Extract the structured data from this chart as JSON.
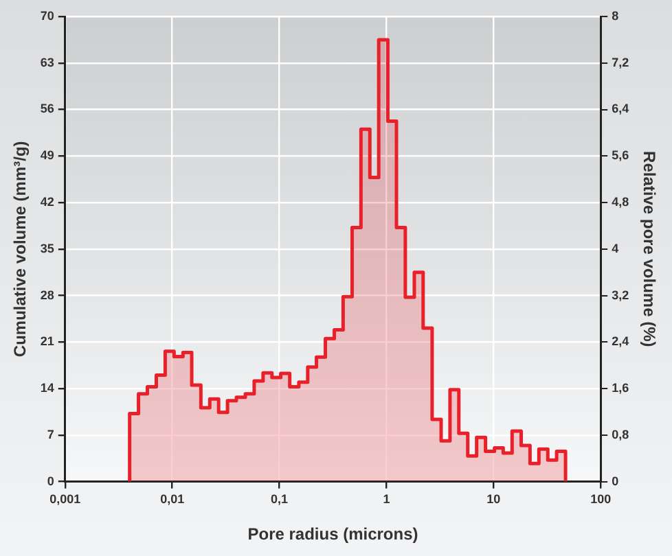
{
  "chart_data": {
    "type": "histogram",
    "xlabel": "Pore radius (microns)",
    "ylabel": "Cumulative volume (mm³/g)",
    "y2label": "Relative pore volume (%)",
    "log": "x",
    "grid": true,
    "legend": false,
    "xlim": [
      0.001,
      100
    ],
    "xticks": [
      {
        "value": 0.001,
        "label": "0,001"
      },
      {
        "value": 0.01,
        "label": "0,01"
      },
      {
        "value": 0.1,
        "label": "0,1"
      },
      1,
      10,
      100
    ],
    "ylim": [
      0,
      70
    ],
    "yticks": [
      0,
      7,
      14,
      21,
      28,
      35,
      42,
      49,
      56,
      63,
      70
    ],
    "y2lim": [
      0,
      8
    ],
    "y2ticks": [
      0,
      {
        "value": 0.8,
        "label": "0,8"
      },
      {
        "value": 1.6,
        "label": "1,6"
      },
      {
        "value": 2.4,
        "label": "2,4"
      },
      {
        "value": 3.2,
        "label": "3,2"
      },
      4,
      {
        "value": 4.8,
        "label": "4,8"
      },
      {
        "value": 5.6,
        "label": "5,6"
      },
      {
        "value": 6.4,
        "label": "6,4"
      },
      {
        "value": 7.2,
        "label": "7,2"
      },
      8
    ],
    "bins": [
      0.004,
      0.00484,
      0.00586,
      0.0071,
      0.00859,
      0.0104,
      0.0126,
      0.0152,
      0.0185,
      0.0224,
      0.0271,
      0.0328,
      0.0397,
      0.0481,
      0.0582,
      0.0705,
      0.0853,
      0.103,
      0.125,
      0.152,
      0.184,
      0.222,
      0.269,
      0.326,
      0.394,
      0.478,
      0.578,
      0.7,
      0.847,
      1.03,
      1.24,
      1.5,
      1.82,
      2.2,
      2.67,
      3.24,
      3.92,
      4.74,
      5.74,
      6.95,
      8.41,
      10.2,
      12.3,
      14.9,
      18.1,
      21.9,
      26.5,
      32.1,
      38.8,
      47.0
    ],
    "series": [
      {
        "color": "#e8202a",
        "axis": "y2",
        "values": [
          1.17,
          1.51,
          1.63,
          1.83,
          2.24,
          2.15,
          2.22,
          1.66,
          1.27,
          1.42,
          1.19,
          1.39,
          1.45,
          1.51,
          1.73,
          1.87,
          1.79,
          1.86,
          1.63,
          1.71,
          1.97,
          2.14,
          2.46,
          2.61,
          3.18,
          4.37,
          6.06,
          5.23,
          7.6,
          6.2,
          4.37,
          3.17,
          3.6,
          2.64,
          1.07,
          0.7,
          1.58,
          0.83,
          0.44,
          0.76,
          0.52,
          0.58,
          0.49,
          0.87,
          0.62,
          0.31,
          0.56,
          0.37,
          0.52
        ]
      }
    ]
  }
}
